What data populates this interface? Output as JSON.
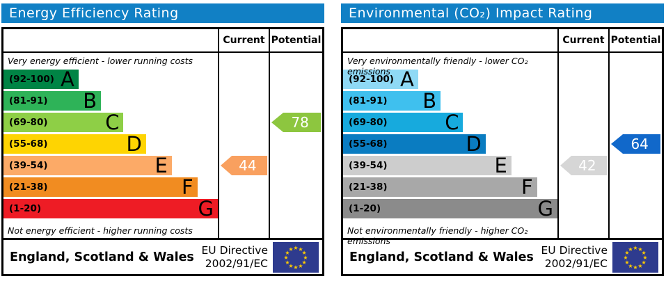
{
  "colors": {
    "header_bg": "#1180c5",
    "border": "#000000",
    "flag_bg": "#2e3b8e",
    "flag_star": "#ffcc00"
  },
  "panels": [
    {
      "title": "Energy Efficiency Rating",
      "columns": {
        "current": "Current",
        "potential": "Potential"
      },
      "top_caption": "Very energy efficient - lower running costs",
      "bottom_caption": "Not energy efficient - higher running costs",
      "bands": [
        {
          "range": "(92-100)",
          "letter": "A",
          "color": "#008445",
          "width": "35%"
        },
        {
          "range": "(81-91)",
          "letter": "B",
          "color": "#2eb358",
          "width": "45.5%"
        },
        {
          "range": "(69-80)",
          "letter": "C",
          "color": "#8ecf46",
          "width": "56%"
        },
        {
          "range": "(55-68)",
          "letter": "D",
          "color": "#fed402",
          "width": "66.5%"
        },
        {
          "range": "(39-54)",
          "letter": "E",
          "color": "#fcaa67",
          "width": "78.5%"
        },
        {
          "range": "(21-38)",
          "letter": "F",
          "color": "#f18c21",
          "width": "90.5%"
        },
        {
          "range": "(1-20)",
          "letter": "G",
          "color": "#ee1c25",
          "width": "100%"
        }
      ],
      "current": {
        "value": "44",
        "band": "E",
        "row": "4",
        "color": "#f9a05f"
      },
      "potential": {
        "value": "78",
        "band": "C",
        "row": "2",
        "color": "#8dc63f"
      },
      "footer": {
        "region": "England, Scotland & Wales",
        "directive_line1": "EU Directive",
        "directive_line2": "2002/91/EC"
      }
    },
    {
      "title": "Environmental (CO₂) Impact Rating",
      "columns": {
        "current": "Current",
        "potential": "Potential"
      },
      "top_caption": "Very environmentally friendly - lower CO₂ emissions",
      "bottom_caption": "Not environmentally friendly - higher CO₂ emissions",
      "bands": [
        {
          "range": "(92-100)",
          "letter": "A",
          "color": "#8fd9f5",
          "width": "35%"
        },
        {
          "range": "(81-91)",
          "letter": "B",
          "color": "#3fc0ee",
          "width": "45.5%"
        },
        {
          "range": "(69-80)",
          "letter": "C",
          "color": "#17aadd",
          "width": "56%"
        },
        {
          "range": "(55-68)",
          "letter": "D",
          "color": "#0a7cc1",
          "width": "66.5%"
        },
        {
          "range": "(39-54)",
          "letter": "E",
          "color": "#cdcdcd",
          "width": "78.5%"
        },
        {
          "range": "(21-38)",
          "letter": "F",
          "color": "#a8a8a8",
          "width": "90.5%"
        },
        {
          "range": "(1-20)",
          "letter": "G",
          "color": "#8b8b8b",
          "width": "100%"
        }
      ],
      "current": {
        "value": "42",
        "band": "E",
        "row": "4",
        "color": "#d6d6d6"
      },
      "potential": {
        "value": "64",
        "band": "D",
        "row": "3",
        "color": "#1168ca"
      },
      "footer": {
        "region": "England, Scotland & Wales",
        "directive_line1": "EU Directive",
        "directive_line2": "2002/91/EC"
      }
    }
  ],
  "chart_data": [
    {
      "type": "bar",
      "title": "Energy Efficiency Rating",
      "categories": [
        "A (92-100)",
        "B (81-91)",
        "C (69-80)",
        "D (55-68)",
        "E (39-54)",
        "F (21-38)",
        "G (1-20)"
      ],
      "series": [
        {
          "name": "Current",
          "values": [
            44
          ],
          "band": "E"
        },
        {
          "name": "Potential",
          "values": [
            78
          ],
          "band": "C"
        }
      ],
      "annotations": [
        "Very energy efficient - lower running costs",
        "Not energy efficient - higher running costs",
        "England, Scotland & Wales",
        "EU Directive 2002/91/EC"
      ],
      "xlim": [
        1,
        100
      ]
    },
    {
      "type": "bar",
      "title": "Environmental (CO₂) Impact Rating",
      "categories": [
        "A (92-100)",
        "B (81-91)",
        "C (69-80)",
        "D (55-68)",
        "E (39-54)",
        "F (21-38)",
        "G (1-20)"
      ],
      "series": [
        {
          "name": "Current",
          "values": [
            42
          ],
          "band": "E"
        },
        {
          "name": "Potential",
          "values": [
            64
          ],
          "band": "D"
        }
      ],
      "annotations": [
        "Very environmentally friendly - lower CO₂ emissions",
        "Not environmentally friendly - higher CO₂ emissions",
        "England, Scotland & Wales",
        "EU Directive 2002/91/EC"
      ],
      "xlim": [
        1,
        100
      ]
    }
  ]
}
